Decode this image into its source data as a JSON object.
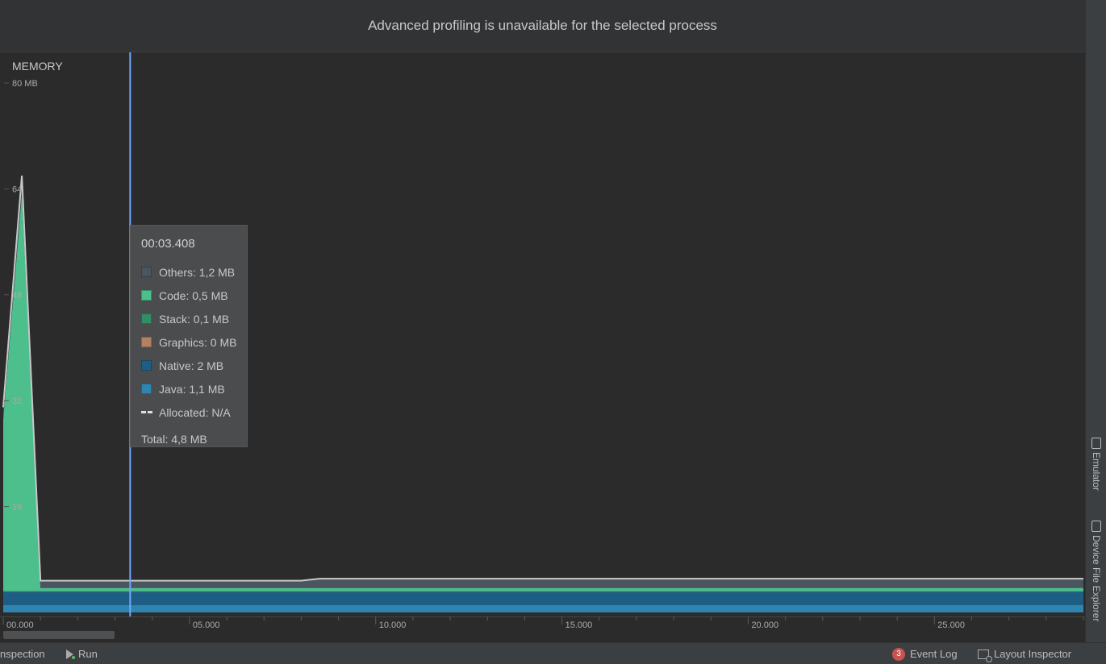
{
  "banner": {
    "text": "Advanced profiling is unavailable for the selected process"
  },
  "memory_label": "MEMORY",
  "tooltip": {
    "time": "00:03.408",
    "items": [
      {
        "label": "Others: 1,2 MB",
        "color": "#4a5560"
      },
      {
        "label": "Code: 0,5 MB",
        "color": "#4cbf8c"
      },
      {
        "label": "Stack: 0,1 MB",
        "color": "#2f8e63"
      },
      {
        "label": "Graphics: 0 MB",
        "color": "#b48260"
      },
      {
        "label": "Native: 2 MB",
        "color": "#1f5e84"
      },
      {
        "label": "Java: 1,1 MB",
        "color": "#2d85b0"
      }
    ],
    "allocated": "Allocated: N/A",
    "total": "Total: 4,8 MB"
  },
  "chart_data": {
    "type": "area",
    "ylabel_unit": "MB",
    "y_ticks": [
      "80 MB",
      "64",
      "48",
      "32",
      "16"
    ],
    "ylim": [
      0,
      80
    ],
    "x_ticks": [
      "00.000",
      "05.000",
      "10.000",
      "15.000",
      "20.000",
      "25.000"
    ],
    "xlim": [
      0,
      29
    ],
    "cursor_time": 3.408,
    "grid": false,
    "x_seconds": [
      0,
      0.5,
      1.0,
      8.0,
      8.5,
      29
    ],
    "series": [
      {
        "name": "Java",
        "color": "#2d85b0",
        "values": [
          1.1,
          1.1,
          1.1,
          1.1,
          1.1,
          1.1
        ]
      },
      {
        "name": "Native",
        "color": "#1f5e84",
        "values": [
          2.0,
          2.0,
          2.0,
          2.0,
          2.0,
          2.0
        ]
      },
      {
        "name": "Graphics",
        "color": "#b48260",
        "values": [
          0,
          0,
          0,
          0,
          0,
          0
        ]
      },
      {
        "name": "Stack",
        "color": "#2f8e63",
        "values": [
          0.1,
          0.1,
          0.1,
          0.1,
          0.1,
          0.1
        ]
      },
      {
        "name": "Code",
        "color": "#4cbf8c",
        "values": [
          26,
          60,
          0.5,
          0.5,
          0.5,
          0.5
        ]
      },
      {
        "name": "Others",
        "color": "#4a5560",
        "values": [
          1.2,
          1.2,
          1.2,
          1.2,
          1.5,
          1.5
        ]
      }
    ],
    "total_line": [
      31,
      66,
      4.8,
      4.8,
      5.1,
      5.1
    ],
    "colors": {
      "cursor": "#6ea8ff",
      "total_line": "#c8c8c8",
      "axis": "#555555"
    }
  },
  "sidebar_right": {
    "emulator": "Emulator",
    "device_file_explorer": "Device File Explorer"
  },
  "statusbar": {
    "inspection": "nspection",
    "run": "Run",
    "event_log_count": "3",
    "event_log": "Event Log",
    "layout_inspector": "Layout Inspector"
  }
}
